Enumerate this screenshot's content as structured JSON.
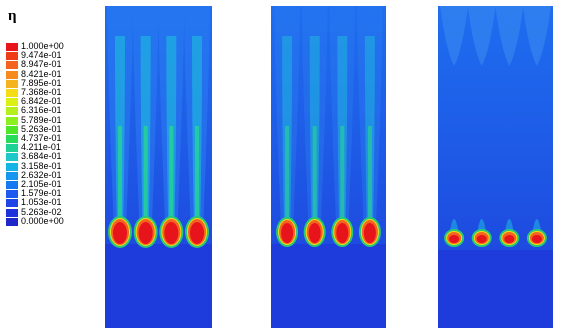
{
  "legend": {
    "title": "η",
    "ticks": [
      "1.000e+00",
      "9.474e-01",
      "8.947e-01",
      "8.421e-01",
      "7.895e-01",
      "7.368e-01",
      "6.842e-01",
      "6.316e-01",
      "5.789e-01",
      "5.263e-01",
      "4.737e-01",
      "4.211e-01",
      "3.684e-01",
      "3.158e-01",
      "2.632e-01",
      "2.105e-01",
      "1.579e-01",
      "1.053e-01",
      "5.263e-02",
      "0.000e+00"
    ],
    "colors": [
      "#e8141c",
      "#f03c14",
      "#f5641e",
      "#f78c1e",
      "#f5b41e",
      "#f5dc14",
      "#dcf014",
      "#b4f01e",
      "#8cf01e",
      "#50e628",
      "#28dc5a",
      "#1ed296",
      "#1ec8c8",
      "#14b4e6",
      "#1496f0",
      "#1478f0",
      "#1e5af0",
      "#1e46e6",
      "#1e32dc",
      "#1e28c8"
    ]
  },
  "panels": [
    {
      "flame_count": 4,
      "flame_size": "large",
      "plume_strength": "strong"
    },
    {
      "flame_count": 4,
      "flame_size": "medium",
      "plume_strength": "medium"
    },
    {
      "flame_count": 4,
      "flame_size": "small",
      "plume_strength": "weak"
    }
  ]
}
